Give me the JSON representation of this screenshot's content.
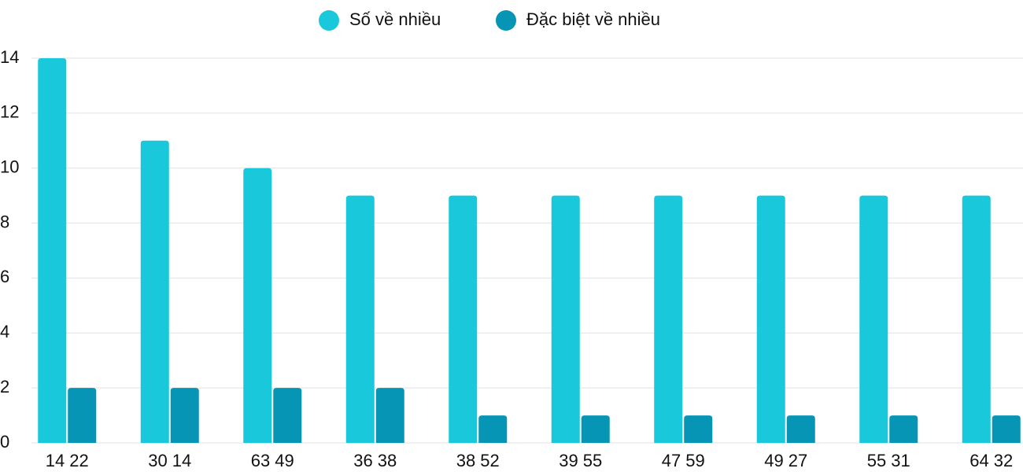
{
  "chart_data": {
    "type": "bar",
    "categories": [
      "14 22",
      "30 14",
      "63 49",
      "36 38",
      "38 52",
      "39 55",
      "47 59",
      "49 27",
      "55 31",
      "64 32"
    ],
    "series": [
      {
        "name": "Số về nhiều",
        "color": "#1ac8db",
        "values": [
          14,
          11,
          10,
          9,
          9,
          9,
          9,
          9,
          9,
          9
        ]
      },
      {
        "name": "Đặc biệt về nhiều",
        "color": "#0795b5",
        "values": [
          2,
          2,
          2,
          2,
          1,
          1,
          1,
          1,
          1,
          1
        ]
      }
    ],
    "ylim": [
      0,
      14
    ],
    "yticks": [
      0,
      2,
      4,
      6,
      8,
      10,
      12,
      14
    ],
    "grid": true,
    "legend": "top"
  }
}
